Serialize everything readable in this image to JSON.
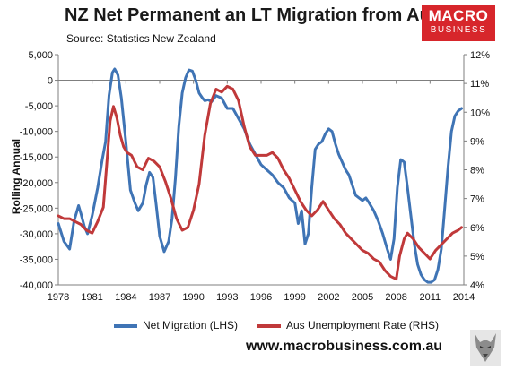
{
  "header": {
    "title": "NZ Net Permanent an LT Migration from Australia",
    "source": "Source: Statistics New Zealand"
  },
  "logo": {
    "line1": "MACRO",
    "line2": "BUSINESS"
  },
  "footer": {
    "website": "www.macrobusiness.com.au"
  },
  "colors": {
    "net_migration": "#3f74b5",
    "unemployment": "#c0393a"
  },
  "chart_data": {
    "type": "line",
    "title": "NZ Net Permanent an LT Migration from Australia",
    "subtitle": "Source: Statistics New Zealand",
    "ylabel": "Rolling Annual",
    "y2label": "",
    "xlabel": "",
    "xlim": [
      1978,
      2014
    ],
    "ylim": [
      -40000,
      5000
    ],
    "y2lim": [
      4,
      12
    ],
    "x_ticks": [
      "1978",
      "1981",
      "1984",
      "1987",
      "1990",
      "1993",
      "1996",
      "1999",
      "2002",
      "2005",
      "2008",
      "2011",
      "2014"
    ],
    "y_ticks": [
      "5,000",
      "0",
      "-5,000",
      "-10,000",
      "-15,000",
      "-20,000",
      "-25,000",
      "-30,000",
      "-35,000",
      "-40,000"
    ],
    "y2_ticks": [
      "12%",
      "11%",
      "10%",
      "9%",
      "8%",
      "7%",
      "6%",
      "5%",
      "4%"
    ],
    "grid": false,
    "legend_position": "bottom",
    "series": [
      {
        "name": "Net Migration (LHS)",
        "axis": "left",
        "x": [
          1978.0,
          1978.5,
          1979.0,
          1979.4,
          1979.8,
          1980.0,
          1980.3,
          1980.6,
          1981.0,
          1981.5,
          1981.9,
          1982.2,
          1982.5,
          1982.8,
          1983.0,
          1983.3,
          1983.6,
          1984.0,
          1984.4,
          1984.8,
          1985.1,
          1985.5,
          1985.8,
          1986.1,
          1986.4,
          1986.7,
          1987.0,
          1987.4,
          1987.8,
          1988.1,
          1988.4,
          1988.7,
          1989.0,
          1989.3,
          1989.6,
          1989.9,
          1990.2,
          1990.5,
          1990.8,
          1991.0,
          1991.3,
          1991.6,
          1992.0,
          1992.5,
          1993.0,
          1993.5,
          1994.0,
          1994.5,
          1995.0,
          1995.5,
          1996.0,
          1996.5,
          1997.0,
          1997.5,
          1998.0,
          1998.5,
          1999.0,
          1999.3,
          1999.6,
          1999.9,
          2000.2,
          2000.5,
          2000.8,
          2001.1,
          2001.4,
          2001.7,
          2002.0,
          2002.3,
          2002.6,
          2002.9,
          2003.2,
          2003.5,
          2003.8,
          2004.1,
          2004.4,
          2004.7,
          2005.0,
          2005.3,
          2005.6,
          2006.0,
          2006.4,
          2006.8,
          2007.2,
          2007.5,
          2007.8,
          2008.1,
          2008.4,
          2008.7,
          2009.0,
          2009.3,
          2009.6,
          2009.9,
          2010.2,
          2010.5,
          2010.8,
          2011.1,
          2011.4,
          2011.7,
          2012.0,
          2012.3,
          2012.6,
          2012.9,
          2013.2,
          2013.5,
          2013.8
        ],
        "y": [
          -28000,
          -31500,
          -33000,
          -27500,
          -24500,
          -26000,
          -28500,
          -30000,
          -26500,
          -21000,
          -15500,
          -12000,
          -3000,
          1500,
          2200,
          1000,
          -3500,
          -12000,
          -21500,
          -24000,
          -25500,
          -24000,
          -20500,
          -18000,
          -19000,
          -24500,
          -30500,
          -33500,
          -31500,
          -27000,
          -19000,
          -9000,
          -2500,
          500,
          2000,
          1800,
          0,
          -2500,
          -3500,
          -4000,
          -3800,
          -4200,
          -3000,
          -3500,
          -5500,
          -5500,
          -7500,
          -9500,
          -12500,
          -14500,
          -16500,
          -17500,
          -18500,
          -20000,
          -21000,
          -23000,
          -24000,
          -28000,
          -25500,
          -32000,
          -30000,
          -21000,
          -13500,
          -12500,
          -12000,
          -10500,
          -9500,
          -10000,
          -12500,
          -14500,
          -16000,
          -17500,
          -18500,
          -20500,
          -22500,
          -23000,
          -23500,
          -23000,
          -24000,
          -25500,
          -27500,
          -30000,
          -33000,
          -35000,
          -31000,
          -21000,
          -15500,
          -16000,
          -21000,
          -26500,
          -32000,
          -36000,
          -38000,
          -39000,
          -39500,
          -39500,
          -39000,
          -37000,
          -33000,
          -25000,
          -17000,
          -10000,
          -7000,
          -6000,
          -5500
        ]
      },
      {
        "name": "Aus Unemployment Rate (RHS)",
        "axis": "right",
        "x": [
          1978.0,
          1978.5,
          1979.0,
          1979.5,
          1980.0,
          1980.5,
          1981.0,
          1981.5,
          1982.0,
          1982.3,
          1982.6,
          1982.9,
          1983.2,
          1983.5,
          1983.8,
          1984.1,
          1984.5,
          1985.0,
          1985.5,
          1986.0,
          1986.5,
          1987.0,
          1987.5,
          1988.0,
          1988.5,
          1989.0,
          1989.5,
          1990.0,
          1990.5,
          1991.0,
          1991.5,
          1992.0,
          1992.5,
          1993.0,
          1993.5,
          1994.0,
          1994.5,
          1995.0,
          1995.5,
          1996.0,
          1996.5,
          1997.0,
          1997.5,
          1998.0,
          1998.5,
          1999.0,
          1999.5,
          2000.0,
          2000.5,
          2001.0,
          2001.5,
          2002.0,
          2002.5,
          2003.0,
          2003.5,
          2004.0,
          2004.5,
          2005.0,
          2005.5,
          2006.0,
          2006.5,
          2007.0,
          2007.5,
          2008.0,
          2008.3,
          2008.7,
          2009.0,
          2009.5,
          2010.0,
          2010.5,
          2011.0,
          2011.5,
          2012.0,
          2012.5,
          2013.0,
          2013.5,
          2013.8
        ],
        "y": [
          6.4,
          6.3,
          6.3,
          6.2,
          6.1,
          5.9,
          5.8,
          6.2,
          6.7,
          8.2,
          9.7,
          10.2,
          9.8,
          9.2,
          8.8,
          8.6,
          8.5,
          8.1,
          8.0,
          8.4,
          8.3,
          8.1,
          7.6,
          7.0,
          6.3,
          5.9,
          6.0,
          6.6,
          7.5,
          9.2,
          10.3,
          10.8,
          10.7,
          10.9,
          10.8,
          10.4,
          9.5,
          8.8,
          8.5,
          8.5,
          8.5,
          8.6,
          8.4,
          8.0,
          7.7,
          7.3,
          6.9,
          6.6,
          6.4,
          6.6,
          6.9,
          6.6,
          6.3,
          6.1,
          5.8,
          5.6,
          5.4,
          5.2,
          5.1,
          4.9,
          4.8,
          4.5,
          4.3,
          4.2,
          5.0,
          5.6,
          5.8,
          5.6,
          5.3,
          5.1,
          4.9,
          5.2,
          5.4,
          5.6,
          5.8,
          5.9,
          6.0
        ]
      }
    ]
  }
}
